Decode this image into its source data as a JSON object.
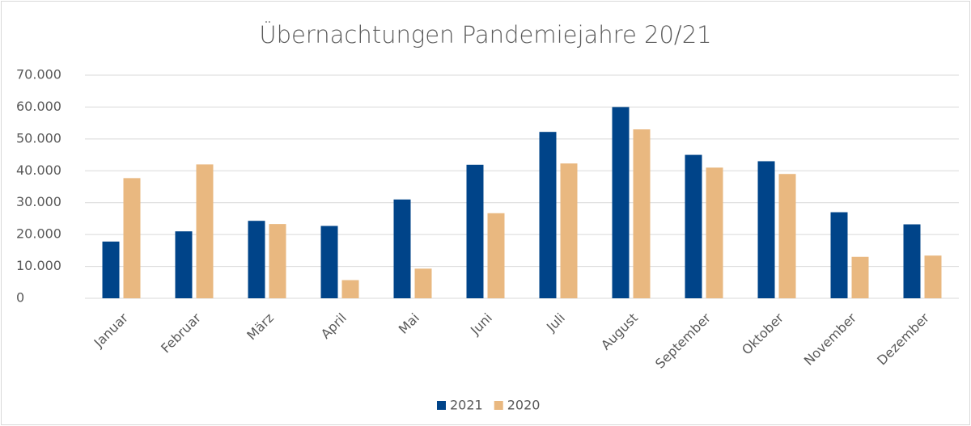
{
  "chart_data": {
    "type": "bar",
    "title": "Übernachtungen Pandemiejahre 20/21",
    "categories": [
      "Januar",
      "Februar",
      "März",
      "April",
      "Mai",
      "Juni",
      "Juli",
      "August",
      "September",
      "Oktober",
      "November",
      "Dezember"
    ],
    "series": [
      {
        "name": "2021",
        "color": "#004489",
        "values": [
          17800,
          21000,
          24300,
          22700,
          31000,
          41900,
          52200,
          60000,
          45000,
          43000,
          27000,
          23200
        ]
      },
      {
        "name": "2020",
        "color": "#e9b880",
        "values": [
          37700,
          42000,
          23300,
          5700,
          9300,
          26700,
          42300,
          53000,
          41000,
          39000,
          13000,
          13400
        ]
      }
    ],
    "ylim": [
      0,
      70000
    ],
    "yticks": [
      0,
      {
        "value": 10000,
        "label": "10.000"
      },
      {
        "value": 20000,
        "label": "20.000"
      },
      {
        "value": 30000,
        "label": "30.000"
      },
      {
        "value": 40000,
        "label": "40.000"
      },
      {
        "value": 50000,
        "label": "50.000"
      },
      {
        "value": 60000,
        "label": "60.000"
      },
      {
        "value": 70000,
        "label": "70.000"
      }
    ],
    "grid": true,
    "legend": "bottom"
  }
}
